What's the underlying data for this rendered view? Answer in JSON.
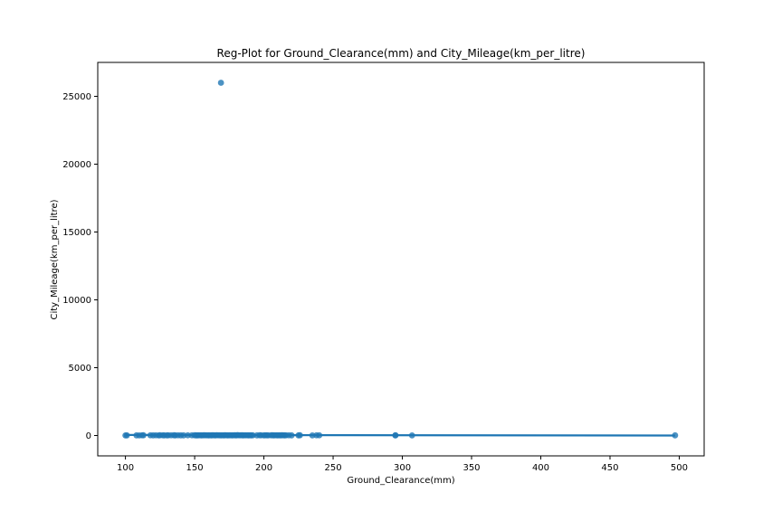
{
  "chart_data": {
    "type": "scatter",
    "title": "Reg-Plot for Ground_Clearance(mm) and City_Mileage(km_per_litre)",
    "xlabel": "Ground_Clearance(mm)",
    "ylabel": "City_Mileage(km_per_litre)",
    "xlim": [
      80,
      518
    ],
    "ylim": [
      -1500,
      27500
    ],
    "xticks": [
      100,
      150,
      200,
      250,
      300,
      350,
      400,
      450,
      500
    ],
    "yticks": [
      0,
      5000,
      10000,
      15000,
      20000,
      25000
    ],
    "grid": false,
    "legend": "none",
    "point_color": "#1f77b4",
    "line_color": "#1f77b4",
    "regression_line": {
      "x": [
        100,
        497
      ],
      "y": [
        40,
        0
      ]
    },
    "points": {
      "x": [
        100,
        101,
        108,
        110,
        112,
        113,
        118,
        120,
        122,
        124,
        125,
        127,
        128,
        130,
        131,
        133,
        135,
        136,
        138,
        140,
        142,
        145,
        148,
        150,
        151,
        152,
        153,
        154,
        155,
        156,
        157,
        158,
        159,
        160,
        161,
        162,
        163,
        164,
        165,
        166,
        167,
        168,
        169,
        170,
        171,
        172,
        173,
        174,
        175,
        176,
        177,
        178,
        179,
        180,
        181,
        182,
        183,
        184,
        185,
        186,
        187,
        188,
        189,
        190,
        191,
        192,
        195,
        197,
        198,
        200,
        201,
        202,
        203,
        205,
        206,
        207,
        208,
        209,
        210,
        211,
        212,
        213,
        214,
        215,
        216,
        218,
        220,
        225,
        226,
        235,
        238,
        240,
        295,
        295,
        307,
        497,
        169
      ],
      "y": [
        10,
        14,
        12,
        8,
        16,
        20,
        15,
        12,
        18,
        10,
        22,
        16,
        14,
        12,
        18,
        15,
        20,
        11,
        17,
        14,
        13,
        16,
        19,
        21,
        12,
        14,
        17,
        18,
        13,
        16,
        22,
        15,
        19,
        14,
        18,
        11,
        20,
        16,
        13,
        24,
        17,
        15,
        12,
        18,
        14,
        21,
        16,
        13,
        19,
        15,
        12,
        17,
        20,
        14,
        30,
        18,
        16,
        22,
        13,
        19,
        15,
        17,
        12,
        16,
        14,
        18,
        13,
        20,
        15,
        12,
        17,
        19,
        14,
        16,
        21,
        13,
        15,
        18,
        12,
        17,
        14,
        20,
        16,
        13,
        15,
        18,
        12,
        14,
        20,
        10,
        16,
        18,
        15,
        12,
        10,
        12,
        26000
      ]
    }
  }
}
